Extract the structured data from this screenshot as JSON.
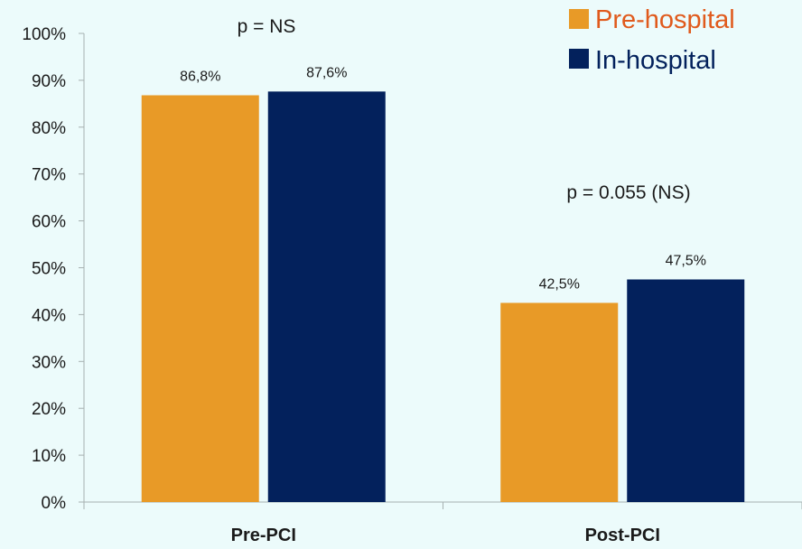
{
  "chart_data": {
    "type": "bar",
    "categories": [
      "Pre-PCI",
      "Post-PCI"
    ],
    "series": [
      {
        "name": "Pre-hospital",
        "values": [
          86.8,
          42.5
        ],
        "labels": [
          "86,8%",
          "42,5%"
        ],
        "color": "#e89a27"
      },
      {
        "name": "In-hospital",
        "values": [
          87.6,
          47.5
        ],
        "labels": [
          "87,6%",
          "47,5%"
        ],
        "color": "#03215c"
      }
    ],
    "ylim": [
      0,
      100
    ],
    "yticks": [
      "0%",
      "10%",
      "20%",
      "30%",
      "40%",
      "50%",
      "60%",
      "70%",
      "80%",
      "90%",
      "100%"
    ],
    "annotations": [
      "p = NS",
      "p = 0.055 (NS)"
    ],
    "legend": {
      "placement": "top-right"
    },
    "grid": false,
    "title": "",
    "xlabel": "",
    "ylabel": ""
  },
  "colors": {
    "background": "#ecfbfb",
    "axis": "#a6b0b0",
    "legend_pre_text": "#e05a1c",
    "legend_in_text": "#03215c"
  }
}
